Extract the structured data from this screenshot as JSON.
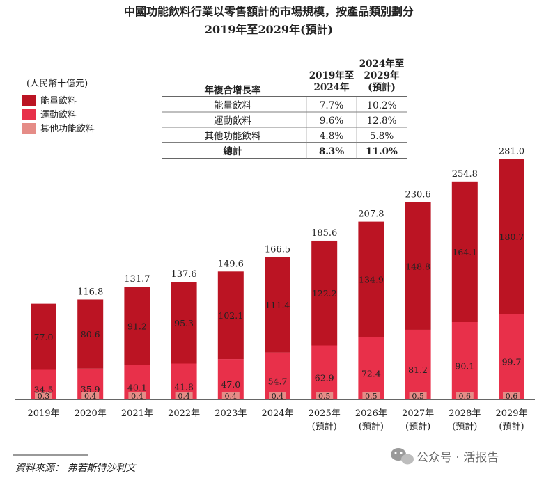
{
  "colors": {
    "energy": "#bb1423",
    "sports": "#e8304a",
    "other": "#e58c87",
    "axis": "#333333"
  },
  "chart_data": {
    "type": "bar",
    "stacked": true,
    "title_line1": "中國功能飲料行業以零售額計的市場規模，按產品類別劃分",
    "title_line2": "2019年至2029年(預計)",
    "unit": "(人民幣十億元)",
    "categories": [
      "2019年",
      "2020年",
      "2021年",
      "2022年",
      "2023年",
      "2024年",
      "2025年",
      "2026年",
      "2027年",
      "2028年",
      "2029年"
    ],
    "category_sub": [
      "",
      "",
      "",
      "",
      "",
      "",
      "(預計)",
      "(預計)",
      "(預計)",
      "(預計)",
      "(預計)"
    ],
    "series": [
      {
        "name": "其他功能飲料",
        "key": "other",
        "values": [
          0.3,
          0.4,
          0.4,
          0.4,
          0.4,
          0.4,
          0.5,
          0.5,
          0.5,
          0.6,
          0.6
        ]
      },
      {
        "name": "運動飲料",
        "key": "sports",
        "values": [
          34.5,
          35.9,
          40.1,
          41.8,
          47.0,
          54.7,
          62.9,
          72.4,
          81.2,
          90.1,
          99.7
        ]
      },
      {
        "name": "能量飲料",
        "key": "energy",
        "values": [
          77.0,
          80.6,
          91.2,
          95.3,
          102.1,
          111.4,
          122.2,
          134.9,
          148.8,
          164.1,
          180.7
        ]
      }
    ],
    "totals": [
      "",
      "116.8",
      "131.7",
      "137.6",
      "149.6",
      "166.5",
      "185.6",
      "207.8",
      "230.6",
      "254.8",
      "281.0"
    ],
    "legend": [
      "能量飲料",
      "運動飲料",
      "其他功能飲料"
    ],
    "legend_position": "top-left",
    "cagr_table": {
      "header": [
        "年複合增長率",
        "2019年至\n2024年",
        "2024年至\n2029年\n(預計)"
      ],
      "rows": [
        [
          "能量飲料",
          "7.7%",
          "10.2%"
        ],
        [
          "運動飲料",
          "9.6%",
          "12.8%"
        ],
        [
          "其他功能飲料",
          "4.8%",
          "5.8%"
        ]
      ],
      "total": [
        "總計",
        "8.3%",
        "11.0%"
      ]
    }
  },
  "source": "資料來源： 弗若斯特沙利文",
  "watermark": "公众号 · 活报告"
}
